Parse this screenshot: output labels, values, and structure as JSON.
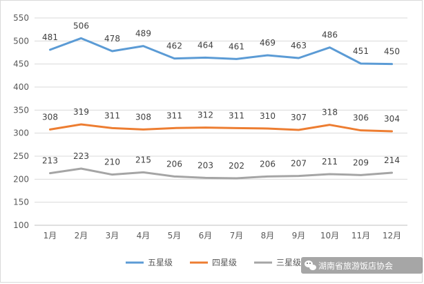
{
  "chart_data": {
    "type": "line",
    "categories": [
      "1月",
      "2月",
      "3月",
      "4月",
      "5月",
      "6月",
      "7月",
      "8月",
      "9月",
      "10月",
      "11月",
      "12月"
    ],
    "series": [
      {
        "name": "五星级",
        "color": "#5b9bd5",
        "values": [
          481,
          506,
          478,
          489,
          462,
          464,
          461,
          469,
          463,
          486,
          451,
          450
        ]
      },
      {
        "name": "四星级",
        "color": "#ed7d31",
        "values": [
          308,
          319,
          311,
          308,
          311,
          312,
          311,
          310,
          307,
          318,
          306,
          304
        ]
      },
      {
        "name": "三星级",
        "color": "#a5a5a5",
        "values": [
          213,
          223,
          210,
          215,
          206,
          203,
          202,
          206,
          207,
          211,
          209,
          214
        ]
      }
    ],
    "ylim": [
      100,
      550
    ],
    "yticks": [
      100,
      150,
      200,
      250,
      300,
      350,
      400,
      450,
      500,
      550
    ],
    "grid": true,
    "data_labels": true,
    "legend_position": "bottom",
    "title": "",
    "xlabel": "",
    "ylabel": ""
  },
  "watermark": {
    "text": "湖南省旅游饭店协会",
    "icon": "wechat-icon"
  }
}
